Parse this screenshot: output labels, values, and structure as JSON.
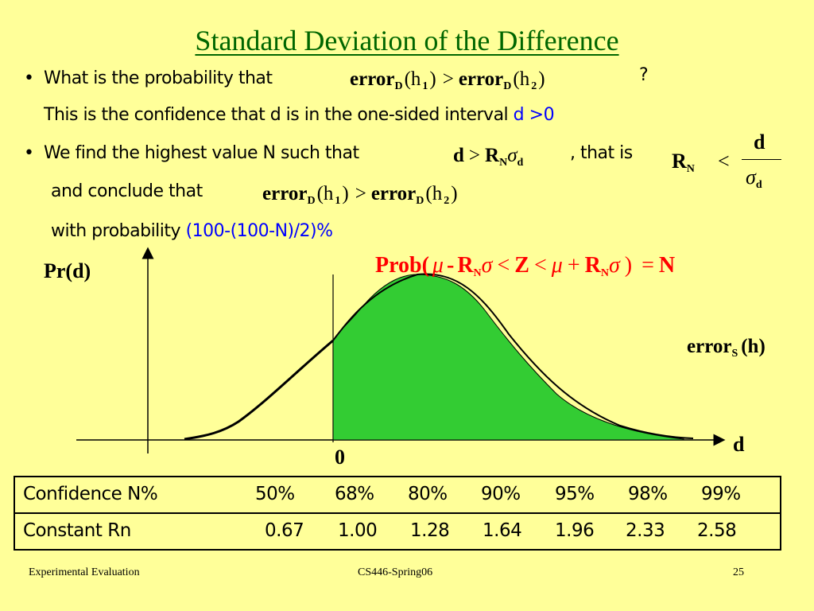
{
  "title": "Standard Deviation of the Difference",
  "bullets": [
    {
      "text": "What is the probability that",
      "formula": {
        "lhs": "error",
        "lhs_sub": "D",
        "lhs_arg": "(h",
        "lhs_arg_sub": "1",
        "lhs_close": ")",
        "op": ">",
        "rhs": "error",
        "rhs_sub": "D",
        "rhs_arg": "(h",
        "rhs_arg_sub": "2",
        "rhs_close": ")"
      },
      "trail": "?",
      "line2": "This is the confidence that d is in the one-sided interval",
      "line2_highlight": "d >0"
    },
    {
      "text": "We find the highest value N such that",
      "formula": {
        "d": "d",
        "op": ">",
        "R": "R",
        "R_sub": "N",
        "sigma": "σ",
        "sigma_sub": "d"
      },
      "trail": ", that is",
      "line2": "and conclude that",
      "formula2": {
        "lhs": "error",
        "lhs_sub": "D",
        "lhs_arg": "(h",
        "lhs_arg_sub": "1",
        "lhs_close": ")",
        "op": ">",
        "rhs": "error",
        "rhs_sub": "D",
        "rhs_arg": "(h",
        "rhs_arg_sub": "2",
        "rhs_close": ")"
      },
      "line3": "with probability",
      "line3_highlight": "(100-(100-N)/2)%"
    }
  ],
  "side_fraction": {
    "R": "R",
    "R_sub": "N",
    "op": "<",
    "num": "d",
    "den": "σ",
    "den_sub": "d"
  },
  "plot": {
    "ylabel": "Pr(d)",
    "xlabel": "d",
    "zero_label": "0",
    "curve_label": "error",
    "curve_label_sub": "S",
    "curve_label_arg": "(h)",
    "prob_formula": {
      "prob": "Prob(",
      "mu1": "μ",
      "minus": "-",
      "R1": "R",
      "R1_sub": "N",
      "sig1": "σ",
      "lt1": "<",
      "Z": "Z",
      "lt2": "<",
      "mu2": "μ",
      "plus": "+",
      "R2": "R",
      "R2_sub": "N",
      "sig2": "σ",
      "close": ")",
      "eq": "=",
      "N": "N"
    },
    "colors": {
      "fill": "#33cc33",
      "curve": "#000000"
    }
  },
  "table": {
    "rows": [
      {
        "label": "Confidence N%",
        "values": [
          "50%",
          "68%",
          "80%",
          "90%",
          "95%",
          "98%",
          "99%"
        ]
      },
      {
        "label": "Constant Rn",
        "values": [
          "0.67",
          "1.00",
          "1.28",
          "1.64",
          "1.96",
          "2.33",
          "2.58"
        ]
      }
    ]
  },
  "footer": {
    "left": "Experimental Evaluation",
    "center": "CS446-Spring06",
    "right": "25"
  }
}
